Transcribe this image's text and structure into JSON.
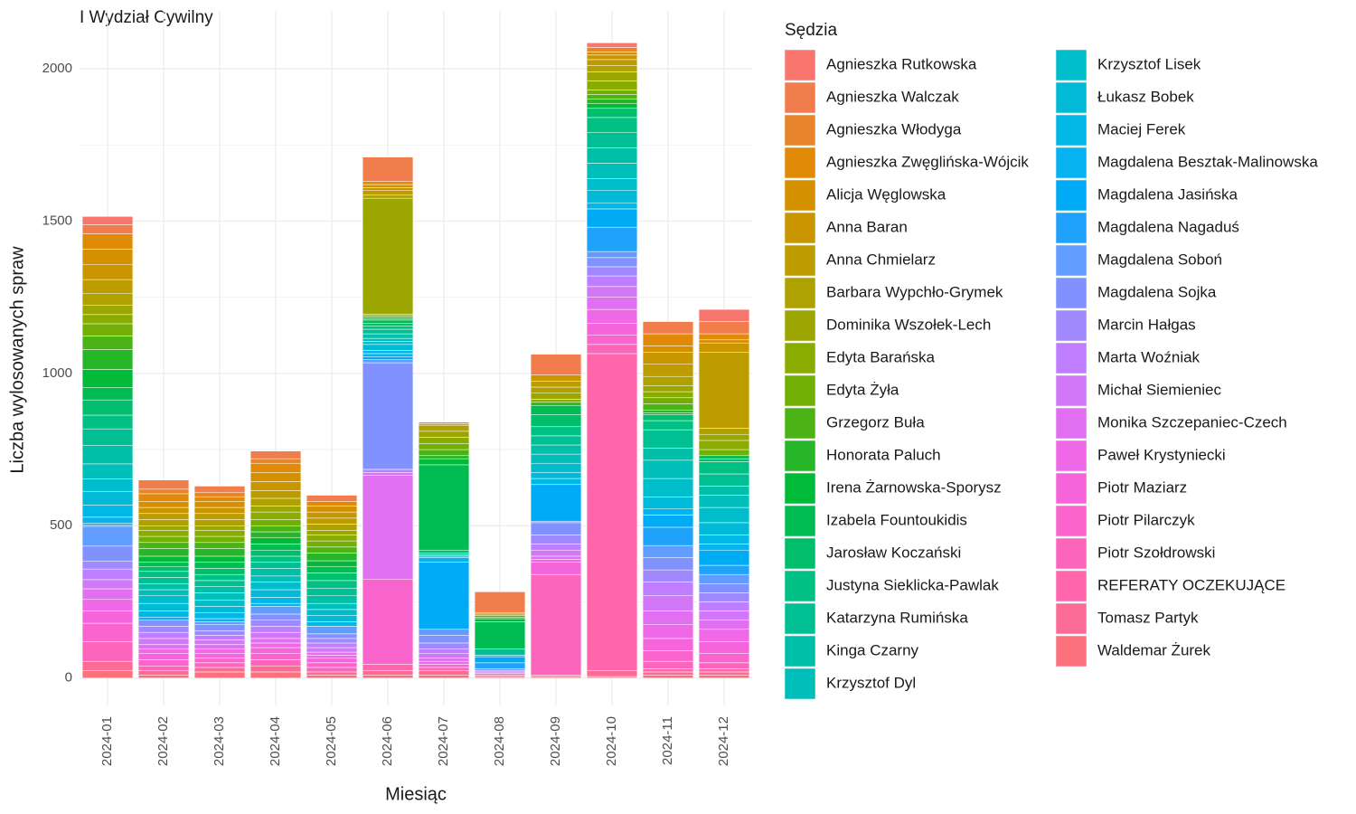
{
  "chart_data": {
    "type": "stacked_bar",
    "title": "I Wydział Cywilny",
    "x_label": "Miesiąc",
    "y_label": "Liczba wylosowanych spraw",
    "legend_title": "Sędzia",
    "legend_position": "right",
    "grid": true,
    "categories": [
      "2024-01",
      "2024-02",
      "2024-03",
      "2024-04",
      "2024-05",
      "2024-06",
      "2024-07",
      "2024-08",
      "2024-09",
      "2024-10",
      "2024-11",
      "2024-12"
    ],
    "ylim": [
      -90,
      2190
    ],
    "yticks": [
      0,
      500,
      1000,
      1500,
      2000
    ],
    "series": [
      {
        "name": "Agnieszka Rutkowska",
        "color": "#F8766D",
        "values": [
          27,
          0,
          0,
          0,
          0,
          0,
          0,
          0,
          0,
          15,
          0,
          40
        ]
      },
      {
        "name": "Agnieszka Walczak",
        "color": "#F07D4B",
        "values": [
          30,
          30,
          20,
          25,
          20,
          80,
          5,
          68,
          68,
          0,
          40,
          40
        ]
      },
      {
        "name": "Agnieszka Włodyga",
        "color": "#E8842A",
        "values": [
          0,
          15,
          15,
          15,
          0,
          0,
          0,
          0,
          0,
          15,
          0,
          0
        ]
      },
      {
        "name": "Agnieszka Zwęglińska-Wójcik",
        "color": "#E08A08",
        "values": [
          50,
          25,
          15,
          30,
          15,
          10,
          0,
          5,
          0,
          0,
          40,
          20
        ]
      },
      {
        "name": "Alicja Węglowska",
        "color": "#D59000",
        "values": [
          50,
          20,
          20,
          30,
          20,
          10,
          0,
          0,
          0,
          10,
          20,
          10
        ]
      },
      {
        "name": "Anna Baran",
        "color": "#C99600",
        "values": [
          50,
          20,
          20,
          30,
          20,
          10,
          0,
          0,
          20,
          15,
          40,
          30
        ]
      },
      {
        "name": "Anna Chmielarz",
        "color": "#BD9C00",
        "values": [
          45,
          20,
          20,
          25,
          20,
          15,
          5,
          0,
          20,
          20,
          40,
          250
        ]
      },
      {
        "name": "Barbara Wypchło-Grymek",
        "color": "#AEA100",
        "values": [
          40,
          20,
          20,
          25,
          20,
          10,
          20,
          0,
          20,
          20,
          30,
          20
        ]
      },
      {
        "name": "Dominika Wszołek-Lech",
        "color": "#9CA600",
        "values": [
          30,
          15,
          15,
          20,
          15,
          380,
          20,
          0,
          20,
          30,
          20,
          20
        ]
      },
      {
        "name": "Edyta Barańska",
        "color": "#8AAB00",
        "values": [
          30,
          20,
          20,
          25,
          20,
          0,
          20,
          0,
          10,
          30,
          20,
          30
        ]
      },
      {
        "name": "Edyta Żyła",
        "color": "#72AF04",
        "values": [
          40,
          20,
          20,
          20,
          20,
          5,
          20,
          5,
          0,
          15,
          20,
          20
        ]
      },
      {
        "name": "Grzegorz Buła",
        "color": "#4CB316",
        "values": [
          45,
          20,
          20,
          20,
          20,
          5,
          20,
          5,
          0,
          15,
          20,
          0
        ]
      },
      {
        "name": "Honorata Paluch",
        "color": "#26B627",
        "values": [
          65,
          25,
          25,
          20,
          25,
          5,
          10,
          5,
          10,
          15,
          10,
          0
        ]
      },
      {
        "name": "Irena Żarnowska-Sporysz",
        "color": "#00BA38",
        "values": [
          60,
          20,
          20,
          20,
          20,
          5,
          20,
          10,
          0,
          15,
          5,
          0
        ]
      },
      {
        "name": "Izabela Fountoukidis",
        "color": "#00BC52",
        "values": [
          40,
          15,
          20,
          20,
          20,
          10,
          280,
          90,
          30,
          0,
          0,
          10
        ]
      },
      {
        "name": "Jarosław Koczański",
        "color": "#00BE6B",
        "values": [
          50,
          15,
          20,
          20,
          25,
          10,
          10,
          0,
          40,
          30,
          20,
          10
        ]
      },
      {
        "name": "Justyna Sieklicka-Pawlak",
        "color": "#00C084",
        "values": [
          45,
          20,
          20,
          20,
          25,
          10,
          0,
          0,
          30,
          50,
          30,
          40
        ]
      },
      {
        "name": "Katarzyna Rumińska",
        "color": "#00C093",
        "values": [
          55,
          20,
          20,
          20,
          25,
          15,
          5,
          20,
          30,
          50,
          60,
          40
        ]
      },
      {
        "name": "Kinga Czarny",
        "color": "#00BFA8",
        "values": [
          60,
          20,
          20,
          25,
          25,
          15,
          0,
          0,
          30,
          50,
          40,
          30
        ]
      },
      {
        "name": "Krzysztof Dyl",
        "color": "#00BFBA",
        "values": [
          50,
          20,
          25,
          20,
          20,
          10,
          0,
          0,
          30,
          50,
          60,
          40
        ]
      },
      {
        "name": "Krzysztof Lisek",
        "color": "#00BDCB",
        "values": [
          40,
          25,
          20,
          25,
          20,
          10,
          5,
          0,
          30,
          40,
          60,
          50
        ]
      },
      {
        "name": "Łukasz Bobek",
        "color": "#00BAD7",
        "values": [
          45,
          25,
          20,
          25,
          20,
          20,
          5,
          5,
          20,
          40,
          40,
          40
        ]
      },
      {
        "name": "Maciej Ferek",
        "color": "#00B7E6",
        "values": [
          40,
          20,
          20,
          20,
          15,
          10,
          0,
          0,
          20,
          20,
          0,
          30
        ]
      },
      {
        "name": "Magdalena Besztak-Malinowska",
        "color": "#07B2F1",
        "values": [
          20,
          10,
          10,
          10,
          0,
          10,
          15,
          0,
          0,
          0,
          20,
          20
        ]
      },
      {
        "name": "Magdalena Jasińska",
        "color": "#00ABF6",
        "values": [
          5,
          0,
          0,
          0,
          0,
          10,
          220,
          20,
          120,
          60,
          40,
          50
        ]
      },
      {
        "name": "Magdalena Nagaduś",
        "color": "#1FA3FA",
        "values": [
          5,
          0,
          0,
          0,
          0,
          0,
          0,
          20,
          0,
          80,
          60,
          30
        ]
      },
      {
        "name": "Magdalena Soboń",
        "color": "#619CFF",
        "values": [
          65,
          0,
          10,
          25,
          25,
          10,
          20,
          0,
          5,
          20,
          40,
          30
        ]
      },
      {
        "name": "Magdalena Sojka",
        "color": "#8192FF",
        "values": [
          50,
          20,
          20,
          20,
          15,
          350,
          25,
          5,
          40,
          30,
          40,
          30
        ]
      },
      {
        "name": "Marcin Hałgas",
        "color": "#A088FF",
        "values": [
          25,
          20,
          15,
          20,
          15,
          0,
          20,
          0,
          30,
          30,
          40,
          30
        ]
      },
      {
        "name": "Marta Woźniak",
        "color": "#BF7EFF",
        "values": [
          35,
          20,
          15,
          20,
          15,
          10,
          15,
          5,
          20,
          35,
          45,
          30
        ]
      },
      {
        "name": "Michał Siemieniec",
        "color": "#D277F8",
        "values": [
          30,
          20,
          15,
          20,
          15,
          10,
          15,
          5,
          20,
          35,
          50,
          30
        ]
      },
      {
        "name": "Monika Szczepaniec-Czech",
        "color": "#E06FF1",
        "values": [
          35,
          15,
          15,
          15,
          10,
          340,
          10,
          0,
          10,
          40,
          45,
          30
        ]
      },
      {
        "name": "Paweł Krystyniecki",
        "color": "#EE68E7",
        "values": [
          38,
          15,
          15,
          15,
          10,
          0,
          10,
          5,
          10,
          45,
          45,
          40
        ]
      },
      {
        "name": "Piotr Maziarz",
        "color": "#F664DC",
        "values": [
          40,
          20,
          15,
          20,
          15,
          0,
          10,
          0,
          40,
          40,
          40,
          40
        ]
      },
      {
        "name": "Piotr Pilarczyk",
        "color": "#FA64CD",
        "values": [
          60,
          20,
          15,
          20,
          15,
          280,
          0,
          0,
          0,
          30,
          35,
          30
        ]
      },
      {
        "name": "Piotr Szołdrowski",
        "color": "#FD64BC",
        "values": [
          65,
          15,
          15,
          20,
          15,
          0,
          0,
          0,
          330,
          30,
          25,
          20
        ]
      },
      {
        "name": "REFERATY OCZEKUJĄCE",
        "color": "#FF65AB",
        "values": [
          0,
          0,
          0,
          0,
          0,
          20,
          10,
          0,
          0,
          1040,
          10,
          10
        ]
      },
      {
        "name": "Tomasz Partyk",
        "color": "#FC6B96",
        "values": [
          30,
          15,
          15,
          20,
          10,
          15,
          15,
          5,
          5,
          20,
          10,
          10
        ]
      },
      {
        "name": "Waldemar Żurek",
        "color": "#FA717C",
        "values": [
          25,
          10,
          20,
          20,
          10,
          10,
          10,
          5,
          5,
          5,
          10,
          10
        ]
      }
    ]
  }
}
